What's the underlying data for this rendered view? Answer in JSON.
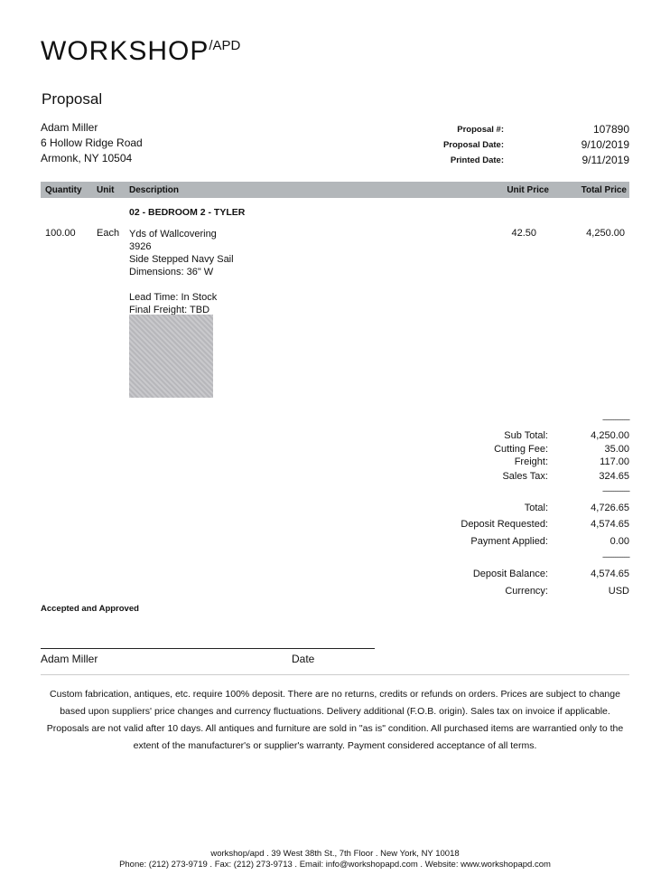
{
  "logo": {
    "main": "WORKSHOP",
    "sup": "/APD"
  },
  "title": "Proposal",
  "customer": {
    "name": "Adam Miller",
    "street": "6 Hollow Ridge Road",
    "city": "Armonk, NY 10504"
  },
  "meta": [
    {
      "label": "Proposal #:",
      "value": "107890"
    },
    {
      "label": "Proposal Date:",
      "value": "9/10/2019"
    },
    {
      "label": "Printed Date:",
      "value": "9/11/2019"
    }
  ],
  "columns": {
    "quantity": "Quantity",
    "unit": "Unit",
    "description": "Description",
    "unit_price": "Unit Price",
    "total_price": "Total Price"
  },
  "section": "02 - BEDROOM 2 - TYLER",
  "item": {
    "quantity": "100.00",
    "unit": "Each",
    "lines": [
      "Yds of Wallcovering",
      "3926",
      "Side Stepped Navy Sail",
      "Dimensions: 36\" W"
    ],
    "lead_time": "Lead Time: In Stock",
    "freight": "Final Freight: TBD",
    "unit_price": "42.50",
    "total_price": "4,250.00"
  },
  "separator": "---------------",
  "totals": {
    "sub_total": {
      "label": "Sub Total:",
      "value": "4,250.00"
    },
    "cutting_fee": {
      "label": "Cutting Fee:",
      "value": "35.00"
    },
    "freight": {
      "label": "Freight:",
      "value": "117.00"
    },
    "sales_tax": {
      "label": "Sales Tax:",
      "value": "324.65"
    },
    "total": {
      "label": "Total:",
      "value": "4,726.65"
    },
    "deposit_requested": {
      "label": "Deposit Requested:",
      "value": "4,574.65"
    },
    "payment_applied": {
      "label": "Payment Applied:",
      "value": "0.00"
    },
    "deposit_balance": {
      "label": "Deposit Balance:",
      "value": "4,574.65"
    },
    "currency": {
      "label": "Currency:",
      "value": "USD"
    }
  },
  "accepted": "Accepted and Approved",
  "signature": {
    "name": "Adam Miller",
    "date": "Date"
  },
  "terms": "Custom fabrication, antiques, etc. require 100% deposit. There are no returns, credits or refunds on orders. Prices are subject to change based upon suppliers' price changes and currency fluctuations. Delivery additional (F.O.B. origin). Sales tax on invoice if applicable. Proposals are not valid after 10 days. All antiques and furniture are sold in \"as is\" condition. All purchased items are warrantied only to the extent of the manufacturer's or supplier's warranty. Payment considered acceptance of all terms.",
  "footer": {
    "line1": "workshop/apd . 39 West 38th St., 7th Floor  . New York, NY 10018",
    "line2": "Phone: (212) 273-9719 . Fax: (212) 273-9713 . Email: info@workshopapd.com . Website: www.workshopapd.com"
  }
}
